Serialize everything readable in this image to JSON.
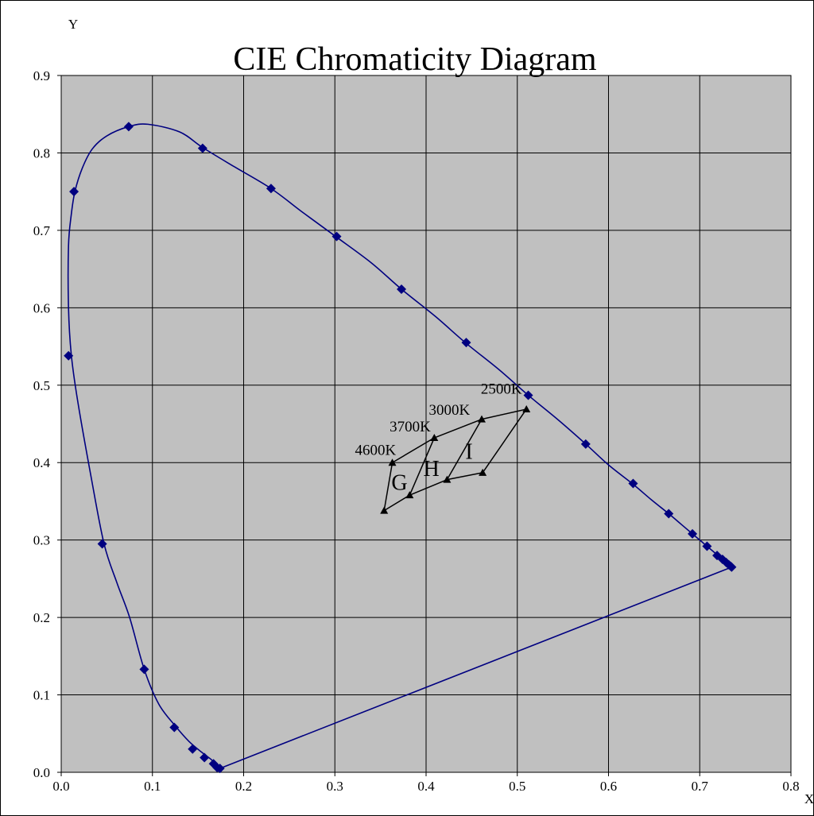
{
  "chart_data": {
    "type": "scatter",
    "title": "CIE Chromaticity Diagram",
    "xlabel": "X",
    "ylabel": "Y",
    "xlim": [
      0.0,
      0.8
    ],
    "ylim": [
      0.0,
      0.9
    ],
    "x_ticks": [
      0.0,
      0.1,
      0.2,
      0.3,
      0.4,
      0.5,
      0.6,
      0.7,
      0.8
    ],
    "y_ticks": [
      0.0,
      0.1,
      0.2,
      0.3,
      0.4,
      0.5,
      0.6,
      0.7,
      0.8,
      0.9
    ],
    "x_tick_labels": [
      "0.0",
      "0.1",
      "0.2",
      "0.3",
      "0.4",
      "0.5",
      "0.6",
      "0.7",
      "0.8"
    ],
    "y_tick_labels": [
      "0.0",
      "0.1",
      "0.2",
      "0.3",
      "0.4",
      "0.5",
      "0.6",
      "0.7",
      "0.8",
      "0.9"
    ],
    "grid": true,
    "plot_background": "#c0c0c0",
    "series": [
      {
        "role": "spectral-locus",
        "color": "#000080",
        "marker": "diamond",
        "smooth_curve": [
          [
            0.174,
            0.005
          ],
          [
            0.17,
            0.009
          ],
          [
            0.165,
            0.016
          ],
          [
            0.155,
            0.025
          ],
          [
            0.14,
            0.04
          ],
          [
            0.125,
            0.06
          ],
          [
            0.107,
            0.088
          ],
          [
            0.091,
            0.133
          ],
          [
            0.075,
            0.2
          ],
          [
            0.061,
            0.245
          ],
          [
            0.047,
            0.295
          ],
          [
            0.033,
            0.38
          ],
          [
            0.018,
            0.48
          ],
          [
            0.011,
            0.54
          ],
          [
            0.008,
            0.6
          ],
          [
            0.008,
            0.68
          ],
          [
            0.011,
            0.72
          ],
          [
            0.015,
            0.75
          ],
          [
            0.023,
            0.78
          ],
          [
            0.034,
            0.805
          ],
          [
            0.05,
            0.822
          ],
          [
            0.074,
            0.834
          ],
          [
            0.095,
            0.837
          ],
          [
            0.13,
            0.827
          ],
          [
            0.155,
            0.807
          ],
          [
            0.19,
            0.782
          ],
          [
            0.23,
            0.754
          ],
          [
            0.265,
            0.723
          ],
          [
            0.301,
            0.692
          ],
          [
            0.34,
            0.658
          ],
          [
            0.373,
            0.624
          ],
          [
            0.41,
            0.589
          ],
          [
            0.443,
            0.555
          ],
          [
            0.48,
            0.52
          ],
          [
            0.512,
            0.487
          ],
          [
            0.545,
            0.455
          ],
          [
            0.575,
            0.424
          ],
          [
            0.6,
            0.397
          ],
          [
            0.627,
            0.372
          ],
          [
            0.647,
            0.352
          ],
          [
            0.666,
            0.334
          ],
          [
            0.68,
            0.32
          ],
          [
            0.692,
            0.308
          ],
          [
            0.7,
            0.3
          ],
          [
            0.708,
            0.292
          ],
          [
            0.715,
            0.285
          ],
          [
            0.72,
            0.28
          ],
          [
            0.725,
            0.275
          ],
          [
            0.729,
            0.271
          ],
          [
            0.732,
            0.268
          ],
          [
            0.734,
            0.266
          ]
        ],
        "points": [
          [
            0.174,
            0.005
          ],
          [
            0.171,
            0.006
          ],
          [
            0.167,
            0.011
          ],
          [
            0.157,
            0.019
          ],
          [
            0.144,
            0.03
          ],
          [
            0.124,
            0.058
          ],
          [
            0.091,
            0.133
          ],
          [
            0.045,
            0.295
          ],
          [
            0.008,
            0.538
          ],
          [
            0.014,
            0.75
          ],
          [
            0.074,
            0.834
          ],
          [
            0.155,
            0.806
          ],
          [
            0.23,
            0.754
          ],
          [
            0.302,
            0.692
          ],
          [
            0.373,
            0.624
          ],
          [
            0.444,
            0.555
          ],
          [
            0.512,
            0.487
          ],
          [
            0.575,
            0.424
          ],
          [
            0.627,
            0.373
          ],
          [
            0.666,
            0.334
          ],
          [
            0.692,
            0.308
          ],
          [
            0.708,
            0.292
          ],
          [
            0.719,
            0.28
          ],
          [
            0.725,
            0.275
          ],
          [
            0.729,
            0.271
          ],
          [
            0.732,
            0.268
          ],
          [
            0.734,
            0.266
          ],
          [
            0.735,
            0.265
          ]
        ],
        "purple_line": [
          [
            0.174,
            0.005
          ],
          [
            0.735,
            0.265
          ]
        ]
      },
      {
        "role": "cct-regions",
        "color": "#000000",
        "marker": "triangle",
        "points": [
          [
            0.363,
            0.4
          ],
          [
            0.409,
            0.432
          ],
          [
            0.461,
            0.456
          ],
          [
            0.51,
            0.469
          ],
          [
            0.354,
            0.338
          ],
          [
            0.382,
            0.358
          ],
          [
            0.423,
            0.378
          ],
          [
            0.462,
            0.387
          ]
        ],
        "segments": [
          [
            [
              0.363,
              0.4
            ],
            [
              0.409,
              0.432
            ]
          ],
          [
            [
              0.409,
              0.432
            ],
            [
              0.461,
              0.456
            ]
          ],
          [
            [
              0.461,
              0.456
            ],
            [
              0.51,
              0.469
            ]
          ],
          [
            [
              0.354,
              0.338
            ],
            [
              0.382,
              0.358
            ]
          ],
          [
            [
              0.382,
              0.358
            ],
            [
              0.423,
              0.378
            ]
          ],
          [
            [
              0.423,
              0.378
            ],
            [
              0.462,
              0.387
            ]
          ],
          [
            [
              0.363,
              0.4
            ],
            [
              0.354,
              0.338
            ]
          ],
          [
            [
              0.409,
              0.432
            ],
            [
              0.382,
              0.358
            ]
          ],
          [
            [
              0.461,
              0.456
            ],
            [
              0.423,
              0.378
            ]
          ],
          [
            [
              0.51,
              0.469
            ],
            [
              0.462,
              0.387
            ]
          ]
        ]
      }
    ],
    "annotations": [
      {
        "text": "4600K",
        "x": 0.322,
        "y": 0.41
      },
      {
        "text": "3700K",
        "x": 0.36,
        "y": 0.44
      },
      {
        "text": "3000K",
        "x": 0.403,
        "y": 0.462
      },
      {
        "text": "2500K",
        "x": 0.46,
        "y": 0.489
      },
      {
        "text": "G",
        "x": 0.362,
        "y": 0.365
      },
      {
        "text": "H",
        "x": 0.397,
        "y": 0.383
      },
      {
        "text": "I",
        "x": 0.443,
        "y": 0.405
      }
    ]
  }
}
